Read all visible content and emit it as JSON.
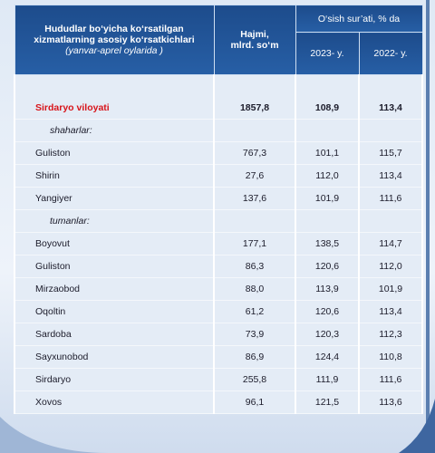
{
  "header": {
    "title": [
      "Hududlar bo‘yicha ko‘rsatilgan",
      "xizmatlarning asosiy ko‘rsatkichlari",
      "(yanvar-aprel oylarida )"
    ],
    "volume": [
      "Hajmi,",
      "mlrd. so‘m"
    ],
    "growth": "O‘sish sur’ati, % da",
    "years": [
      "2023- y.",
      "2022- y."
    ]
  },
  "table": {
    "rows": [
      {
        "name": "Sirdaryo viloyati",
        "values": [
          "1857,8",
          "108,9",
          "113,4"
        ],
        "highlight": true
      },
      {
        "section": "shaharlar:"
      },
      {
        "name": "Guliston",
        "values": [
          "767,3",
          "101,1",
          "115,7"
        ]
      },
      {
        "name": "Shirin",
        "values": [
          "27,6",
          "112,0",
          "113,4"
        ]
      },
      {
        "name": "Yangiyer",
        "values": [
          "137,6",
          "101,9",
          "111,6"
        ]
      },
      {
        "section": "tumanlar:"
      },
      {
        "name": "Boyovut",
        "values": [
          "177,1",
          "138,5",
          "114,7"
        ]
      },
      {
        "name": "Guliston",
        "values": [
          "86,3",
          "120,6",
          "112,0"
        ]
      },
      {
        "name": "Mirzaobod",
        "values": [
          "88,0",
          "113,9",
          "101,9"
        ]
      },
      {
        "name": "Oqoltin",
        "values": [
          "61,2",
          "120,6",
          "113,4"
        ]
      },
      {
        "name": "Sardoba",
        "values": [
          "73,9",
          "120,3",
          "112,3"
        ]
      },
      {
        "name": "Sayxunobod",
        "values": [
          "86,9",
          "124,4",
          "110,8"
        ]
      },
      {
        "name": "Sirdaryo",
        "values": [
          "255,8",
          "111,9",
          "111,6"
        ]
      },
      {
        "name": "Xovos",
        "values": [
          "96,1",
          "121,5",
          "113,6"
        ]
      }
    ]
  }
}
